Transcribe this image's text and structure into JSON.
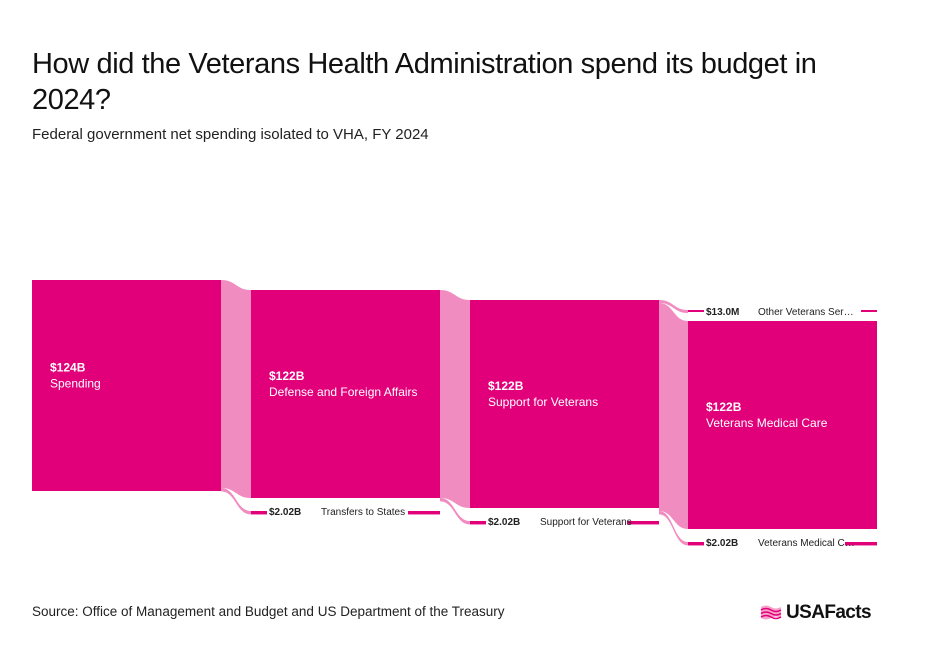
{
  "title": "How did the Veterans Health Administration spend its budget in 2024?",
  "subtitle": "Federal government net spending isolated to VHA, FY 2024",
  "source": "Source: Office of Management and Budget and US Department of the Treasury",
  "logo": "USAFacts",
  "colors": {
    "node": "#e2007a",
    "link": "#f08cbf",
    "text_light": "#ffffff",
    "text_dark": "#222222"
  },
  "chart_data": {
    "type": "sankey",
    "units": "USD",
    "levels": [
      {
        "main": {
          "value_label": "$124B",
          "name": "Spending",
          "value": 124
        },
        "branch": null
      },
      {
        "main": {
          "value_label": "$122B",
          "name": "Defense and Foreign Affairs",
          "value": 122
        },
        "branch": {
          "value_label": "$2.02B",
          "name": "Transfers to States",
          "value": 2.02,
          "position": "bottom"
        }
      },
      {
        "main": {
          "value_label": "$122B",
          "name": "Support for Veterans",
          "value": 122
        },
        "branch": {
          "value_label": "$2.02B",
          "name": "Support for Veterans",
          "value": 2.02,
          "position": "bottom"
        }
      },
      {
        "main": {
          "value_label": "$122B",
          "name": "Veterans Medical Care",
          "value": 122
        },
        "branch_top": {
          "value_label": "$13.0M",
          "name": "Other Veterans Ser…",
          "value": 0.013,
          "position": "top"
        },
        "branch": {
          "value_label": "$2.02B",
          "name": "Veterans Medical C…",
          "value": 2.02,
          "position": "bottom"
        }
      }
    ]
  }
}
